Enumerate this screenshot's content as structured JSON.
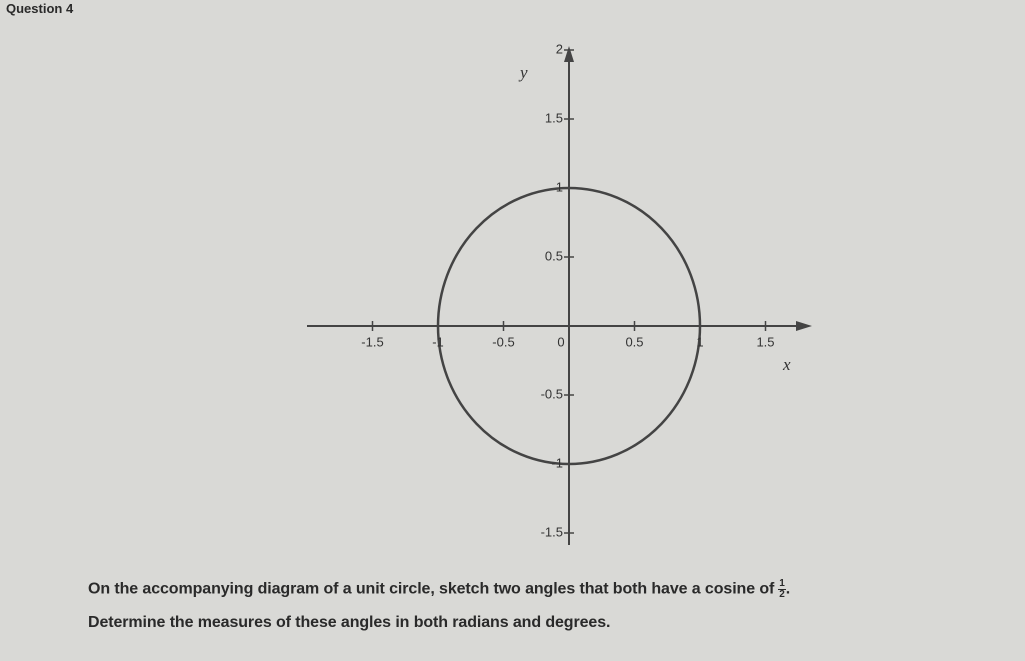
{
  "question": {
    "label": "Question 4",
    "diagram": {
      "y_axis_label": "y",
      "x_axis_label": "x",
      "y_ticks": [
        "2",
        "1.5",
        "1",
        "0.5",
        "-0.5",
        "-1",
        "-1.5"
      ],
      "x_ticks": [
        "-1.5",
        "-1",
        "-0.5",
        "0",
        "0.5",
        "1",
        "1.5"
      ]
    },
    "prompt": {
      "text": "On the accompanying diagram of a unit circle, sketch two angles that both have a cosine of",
      "fraction_numerator": "1",
      "fraction_denominator": "2",
      "end": "."
    },
    "instruction": "Determine the measures of these angles in both radians and degrees."
  }
}
